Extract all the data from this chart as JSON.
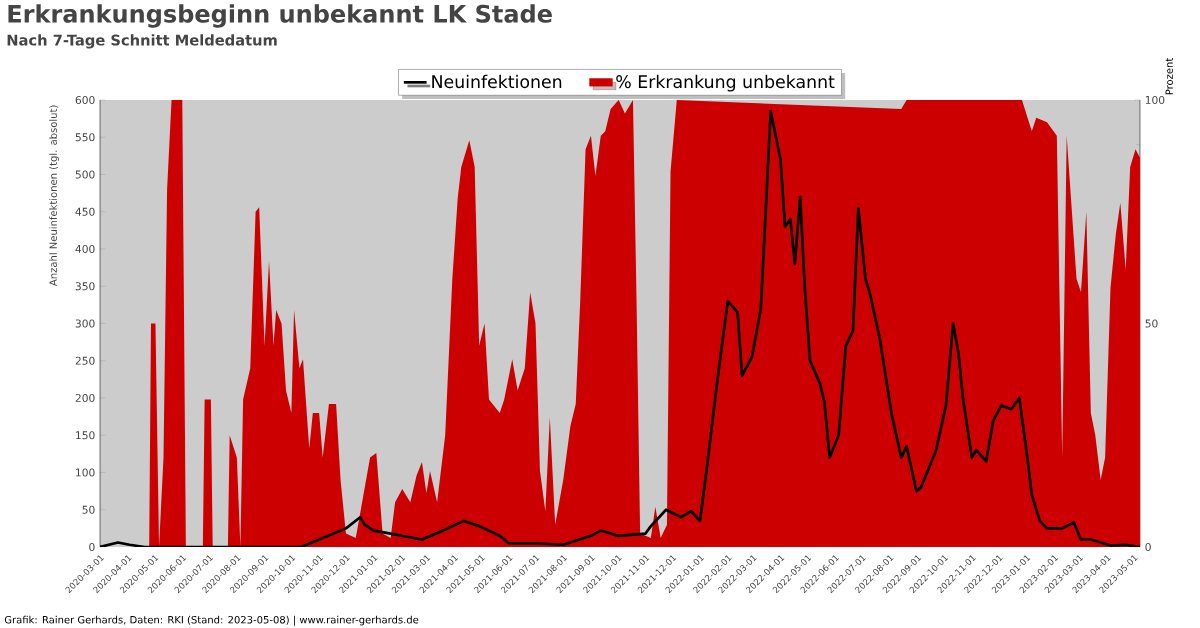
{
  "chart_data": {
    "type": "line",
    "title": "Erkrankungsbeginn unbekannt LK Stade",
    "subtitle": "Nach 7-Tage Schnitt Meldedatum",
    "ylabel": "Anzahl Neuinfektionen (tgl. absolut)",
    "y2label": "Prozent",
    "xlim": [
      "2020-03-01",
      "2023-05-08"
    ],
    "xticks": [
      "2020-03-01",
      "2020-04-01",
      "2020-05-01",
      "2020-06-01",
      "2020-07-01",
      "2020-08-01",
      "2020-09-01",
      "2020-10-01",
      "2020-11-01",
      "2020-12-01",
      "2021-01-01",
      "2021-02-01",
      "2021-03-01",
      "2021-04-01",
      "2021-05-01",
      "2021-06-01",
      "2021-07-01",
      "2021-08-01",
      "2021-09-01",
      "2021-10-01",
      "2021-11-01",
      "2021-12-01",
      "2022-01-01",
      "2022-02-01",
      "2022-03-01",
      "2022-04-01",
      "2022-05-01",
      "2022-06-01",
      "2022-07-01",
      "2022-08-01",
      "2022-09-01",
      "2022-10-01",
      "2022-11-01",
      "2022-12-01",
      "2023-01-01",
      "2023-02-01",
      "2023-03-01",
      "2023-04-01",
      "2023-05-01"
    ],
    "ylim": [
      0,
      600
    ],
    "yticks": [
      0,
      50,
      100,
      150,
      200,
      250,
      300,
      350,
      400,
      450,
      500,
      550,
      600
    ],
    "y2lim": [
      0,
      100
    ],
    "y2ticks": [
      0,
      50,
      100
    ],
    "legend": "top",
    "annotations": [
      "Grafik: Rainer Gerhards, Daten: RKI (Stand: 2023-05-08) | www.rainer-gerhards.de"
    ],
    "series": [
      {
        "name": "Neuinfektionen",
        "color": "#000000",
        "x": [
          "2020-03-01",
          "2020-03-21",
          "2020-04-03",
          "2020-04-20",
          "2020-10-12",
          "2020-11-01",
          "2020-12-01",
          "2020-12-17",
          "2020-12-22",
          "2021-01-01",
          "2021-01-20",
          "2021-02-01",
          "2021-02-24",
          "2021-03-16",
          "2021-04-12",
          "2021-04-29",
          "2021-05-22",
          "2021-06-01",
          "2021-07-01",
          "2021-08-01",
          "2021-09-01",
          "2021-09-12",
          "2021-10-01",
          "2021-11-01",
          "2021-11-07",
          "2021-11-24",
          "2021-12-11",
          "2021-12-22",
          "2022-01-01",
          "2022-01-09",
          "2022-01-20",
          "2022-02-01",
          "2022-02-12",
          "2022-02-17",
          "2022-02-28",
          "2022-03-10",
          "2022-03-21",
          "2022-04-01",
          "2022-04-06",
          "2022-04-12",
          "2022-04-17",
          "2022-04-23",
          "2022-04-28",
          "2022-05-04",
          "2022-05-15",
          "2022-05-20",
          "2022-05-26",
          "2022-06-05",
          "2022-06-13",
          "2022-06-21",
          "2022-06-27",
          "2022-07-05",
          "2022-07-10",
          "2022-07-21",
          "2022-08-03",
          "2022-08-14",
          "2022-08-20",
          "2022-08-31",
          "2022-09-05",
          "2022-09-22",
          "2022-10-03",
          "2022-10-11",
          "2022-10-17",
          "2022-10-22",
          "2022-11-01",
          "2022-11-06",
          "2022-11-17",
          "2022-11-25",
          "2022-12-04",
          "2022-12-15",
          "2022-12-24",
          "2023-01-02",
          "2023-01-07",
          "2023-01-16",
          "2023-01-24",
          "2023-02-10",
          "2023-02-23",
          "2023-03-03",
          "2023-03-14",
          "2023-04-05",
          "2023-04-22",
          "2023-05-08"
        ],
        "values": [
          0,
          6,
          3,
          0,
          0,
          10,
          25,
          40,
          30,
          22,
          18,
          15,
          10,
          20,
          35,
          28,
          15,
          5,
          5,
          3,
          15,
          22,
          15,
          18,
          28,
          50,
          40,
          48,
          35,
          110,
          220,
          330,
          315,
          230,
          255,
          320,
          585,
          520,
          430,
          440,
          380,
          470,
          350,
          250,
          220,
          195,
          120,
          150,
          270,
          290,
          455,
          360,
          340,
          280,
          180,
          120,
          135,
          75,
          80,
          130,
          190,
          300,
          260,
          200,
          120,
          130,
          115,
          170,
          190,
          185,
          200,
          120,
          70,
          35,
          25,
          25,
          33,
          10,
          10,
          2,
          3,
          0
        ]
      },
      {
        "name": "% Erkrankung unbekannt",
        "type": "area",
        "axis": "y2",
        "color": "#cc0000",
        "x": [
          "2020-03-01",
          "2020-04-25",
          "2020-04-27",
          "2020-05-02",
          "2020-05-06",
          "2020-05-11",
          "2020-05-15",
          "2020-05-20",
          "2020-06-01",
          "2020-06-05",
          "2020-06-24",
          "2020-06-26",
          "2020-07-03",
          "2020-07-05",
          "2020-07-22",
          "2020-07-24",
          "2020-08-01",
          "2020-08-05",
          "2020-08-08",
          "2020-08-16",
          "2020-08-22",
          "2020-08-26",
          "2020-09-01",
          "2020-09-06",
          "2020-09-11",
          "2020-09-14",
          "2020-09-20",
          "2020-09-25",
          "2020-10-01",
          "2020-10-04",
          "2020-10-10",
          "2020-10-14",
          "2020-10-21",
          "2020-10-25",
          "2020-11-01",
          "2020-11-05",
          "2020-11-12",
          "2020-11-20",
          "2020-11-25",
          "2020-12-01",
          "2020-12-12",
          "2020-12-28",
          "2021-01-04",
          "2021-01-11",
          "2021-01-20",
          "2021-01-25",
          "2021-02-02",
          "2021-02-11",
          "2021-02-18",
          "2021-02-24",
          "2021-03-01",
          "2021-03-05",
          "2021-03-13",
          "2021-03-22",
          "2021-03-30",
          "2021-04-05",
          "2021-04-09",
          "2021-04-18",
          "2021-04-24",
          "2021-04-29",
          "2021-05-05",
          "2021-05-10",
          "2021-05-22",
          "2021-05-27",
          "2021-06-05",
          "2021-06-11",
          "2021-06-19",
          "2021-06-25",
          "2021-07-01",
          "2021-07-06",
          "2021-07-12",
          "2021-07-17",
          "2021-07-23",
          "2021-08-01",
          "2021-08-09",
          "2021-08-15",
          "2021-08-20",
          "2021-08-26",
          "2021-09-01",
          "2021-09-06",
          "2021-09-12",
          "2021-09-17",
          "2021-09-23",
          "2021-10-02",
          "2021-10-09",
          "2021-10-18",
          "2021-10-22",
          "2021-10-26",
          "2021-11-07",
          "2021-11-12",
          "2021-11-18",
          "2021-11-25",
          "2021-11-29",
          "2021-12-06",
          "2022-08-14",
          "2022-08-20",
          "2022-12-27",
          "2023-01-07",
          "2023-01-12",
          "2023-01-24",
          "2023-02-04",
          "2023-02-10",
          "2023-02-15",
          "2023-02-26",
          "2023-03-03",
          "2023-03-09",
          "2023-03-14",
          "2023-03-19",
          "2023-03-25",
          "2023-03-30",
          "2023-04-05",
          "2023-04-11",
          "2023-04-16",
          "2023-04-22",
          "2023-04-27",
          "2023-05-03",
          "2023-05-08"
        ],
        "values": [
          0,
          0,
          50,
          50,
          0,
          20,
          80,
          100,
          100,
          0,
          0,
          33,
          33,
          0,
          0,
          25,
          20,
          0,
          33,
          40,
          75,
          76,
          45,
          64,
          45,
          53,
          50,
          35,
          30,
          53,
          40,
          42,
          22,
          30,
          30,
          20,
          32,
          32,
          15,
          3,
          2,
          20,
          21,
          3,
          2,
          10,
          13,
          10,
          16,
          19,
          12,
          17,
          10,
          25,
          60,
          78,
          85,
          91,
          85,
          45,
          50,
          33,
          30,
          33,
          42,
          35,
          40,
          57,
          50,
          17,
          8,
          29,
          5,
          15,
          27,
          32,
          55,
          89,
          92,
          83,
          92,
          93,
          98,
          100,
          97,
          100,
          55,
          3,
          2,
          9,
          2,
          5,
          84,
          100,
          98,
          100,
          100,
          93,
          96,
          95,
          92,
          20,
          92,
          60,
          57,
          75,
          30,
          25,
          15,
          20,
          58,
          70,
          77,
          62,
          85,
          89,
          87
        ]
      }
    ]
  }
}
